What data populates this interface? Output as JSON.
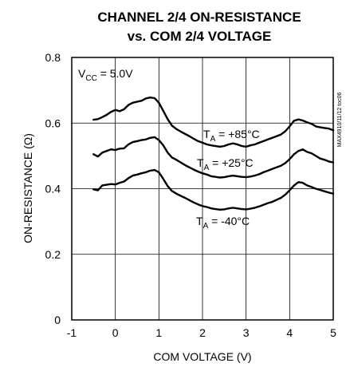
{
  "chart_data": {
    "type": "line",
    "title": "CHANNEL 2/4 ON-RESISTANCE",
    "subtitle": "vs. COM 2/4 VOLTAGE",
    "xlabel": "COM VOLTAGE (V)",
    "ylabel": "ON-RESISTANCE (Ω)",
    "xlim": [
      -1,
      5
    ],
    "ylim": [
      0,
      0.8
    ],
    "x_ticks": [
      "-1",
      "0",
      "1",
      "2",
      "3",
      "4",
      "5"
    ],
    "y_ticks": [
      "0",
      "0.2",
      "0.4",
      "0.6",
      "0.8"
    ],
    "grid": true,
    "condition": {
      "main": "V",
      "sub": "CC",
      "rest": " = 5.0V"
    },
    "side_label": "MAX4910/11/12 toc06",
    "series": [
      {
        "name": "TA = +85°C",
        "label": {
          "main": "T",
          "sub": "A",
          "rest": " = +85°C"
        },
        "x": [
          -0.5,
          -0.4,
          -0.3,
          -0.2,
          -0.1,
          0,
          0.1,
          0.2,
          0.3,
          0.4,
          0.5,
          0.6,
          0.7,
          0.8,
          0.9,
          1.0,
          1.1,
          1.2,
          1.3,
          1.4,
          1.5,
          1.6,
          1.7,
          1.8,
          1.9,
          2.0,
          2.1,
          2.2,
          2.3,
          2.4,
          2.5,
          2.6,
          2.7,
          2.8,
          2.9,
          3.0,
          3.1,
          3.2,
          3.3,
          3.4,
          3.5,
          3.6,
          3.7,
          3.8,
          3.9,
          4.0,
          4.1,
          4.2,
          4.3,
          4.4,
          4.5,
          4.6,
          4.7,
          4.8,
          4.9,
          5.0
        ],
        "y": [
          0.61,
          0.612,
          0.618,
          0.625,
          0.634,
          0.64,
          0.636,
          0.642,
          0.655,
          0.662,
          0.665,
          0.668,
          0.675,
          0.678,
          0.676,
          0.662,
          0.637,
          0.612,
          0.592,
          0.582,
          0.574,
          0.567,
          0.56,
          0.552,
          0.545,
          0.54,
          0.535,
          0.532,
          0.53,
          0.528,
          0.53,
          0.535,
          0.538,
          0.535,
          0.53,
          0.528,
          0.532,
          0.535,
          0.54,
          0.545,
          0.55,
          0.555,
          0.56,
          0.565,
          0.575,
          0.59,
          0.607,
          0.611,
          0.608,
          0.602,
          0.598,
          0.59,
          0.587,
          0.585,
          0.583,
          0.578
        ]
      },
      {
        "name": "TA = +25°C",
        "label": {
          "main": "T",
          "sub": "A",
          "rest": " = +25°C"
        },
        "x": [
          -0.5,
          -0.4,
          -0.3,
          -0.2,
          -0.1,
          0,
          0.1,
          0.2,
          0.3,
          0.4,
          0.5,
          0.6,
          0.7,
          0.8,
          0.9,
          1.0,
          1.1,
          1.2,
          1.3,
          1.4,
          1.5,
          1.6,
          1.7,
          1.8,
          1.9,
          2.0,
          2.1,
          2.2,
          2.3,
          2.4,
          2.5,
          2.6,
          2.7,
          2.8,
          2.9,
          3.0,
          3.1,
          3.2,
          3.3,
          3.4,
          3.5,
          3.6,
          3.7,
          3.8,
          3.9,
          4.0,
          4.1,
          4.2,
          4.3,
          4.4,
          4.5,
          4.6,
          4.7,
          4.8,
          4.9,
          5.0
        ],
        "y": [
          0.505,
          0.498,
          0.51,
          0.515,
          0.52,
          0.518,
          0.522,
          0.523,
          0.535,
          0.542,
          0.545,
          0.548,
          0.55,
          0.555,
          0.557,
          0.548,
          0.532,
          0.51,
          0.495,
          0.488,
          0.48,
          0.472,
          0.465,
          0.458,
          0.452,
          0.447,
          0.443,
          0.438,
          0.436,
          0.434,
          0.435,
          0.438,
          0.44,
          0.438,
          0.436,
          0.435,
          0.437,
          0.44,
          0.444,
          0.45,
          0.455,
          0.46,
          0.465,
          0.47,
          0.478,
          0.49,
          0.505,
          0.515,
          0.52,
          0.512,
          0.508,
          0.5,
          0.492,
          0.488,
          0.483,
          0.48
        ]
      },
      {
        "name": "TA = -40°C",
        "label": {
          "main": "T",
          "sub": "A",
          "rest": " = -40°C"
        },
        "x": [
          -0.5,
          -0.4,
          -0.3,
          -0.2,
          -0.1,
          0,
          0.1,
          0.2,
          0.3,
          0.4,
          0.5,
          0.6,
          0.7,
          0.8,
          0.9,
          1.0,
          1.1,
          1.2,
          1.3,
          1.4,
          1.5,
          1.6,
          1.7,
          1.8,
          1.9,
          2.0,
          2.1,
          2.2,
          2.3,
          2.4,
          2.5,
          2.6,
          2.7,
          2.8,
          2.9,
          3.0,
          3.1,
          3.2,
          3.3,
          3.4,
          3.5,
          3.6,
          3.7,
          3.8,
          3.9,
          4.0,
          4.1,
          4.2,
          4.3,
          4.4,
          4.5,
          4.6,
          4.7,
          4.8,
          4.9,
          5.0
        ],
        "y": [
          0.398,
          0.395,
          0.41,
          0.412,
          0.414,
          0.413,
          0.418,
          0.422,
          0.432,
          0.44,
          0.443,
          0.447,
          0.45,
          0.455,
          0.457,
          0.45,
          0.43,
          0.408,
          0.393,
          0.385,
          0.378,
          0.372,
          0.365,
          0.358,
          0.352,
          0.347,
          0.344,
          0.34,
          0.338,
          0.336,
          0.337,
          0.34,
          0.342,
          0.34,
          0.338,
          0.337,
          0.339,
          0.342,
          0.346,
          0.351,
          0.356,
          0.36,
          0.366,
          0.372,
          0.382,
          0.395,
          0.41,
          0.42,
          0.418,
          0.41,
          0.405,
          0.4,
          0.396,
          0.392,
          0.388,
          0.385
        ]
      }
    ]
  }
}
